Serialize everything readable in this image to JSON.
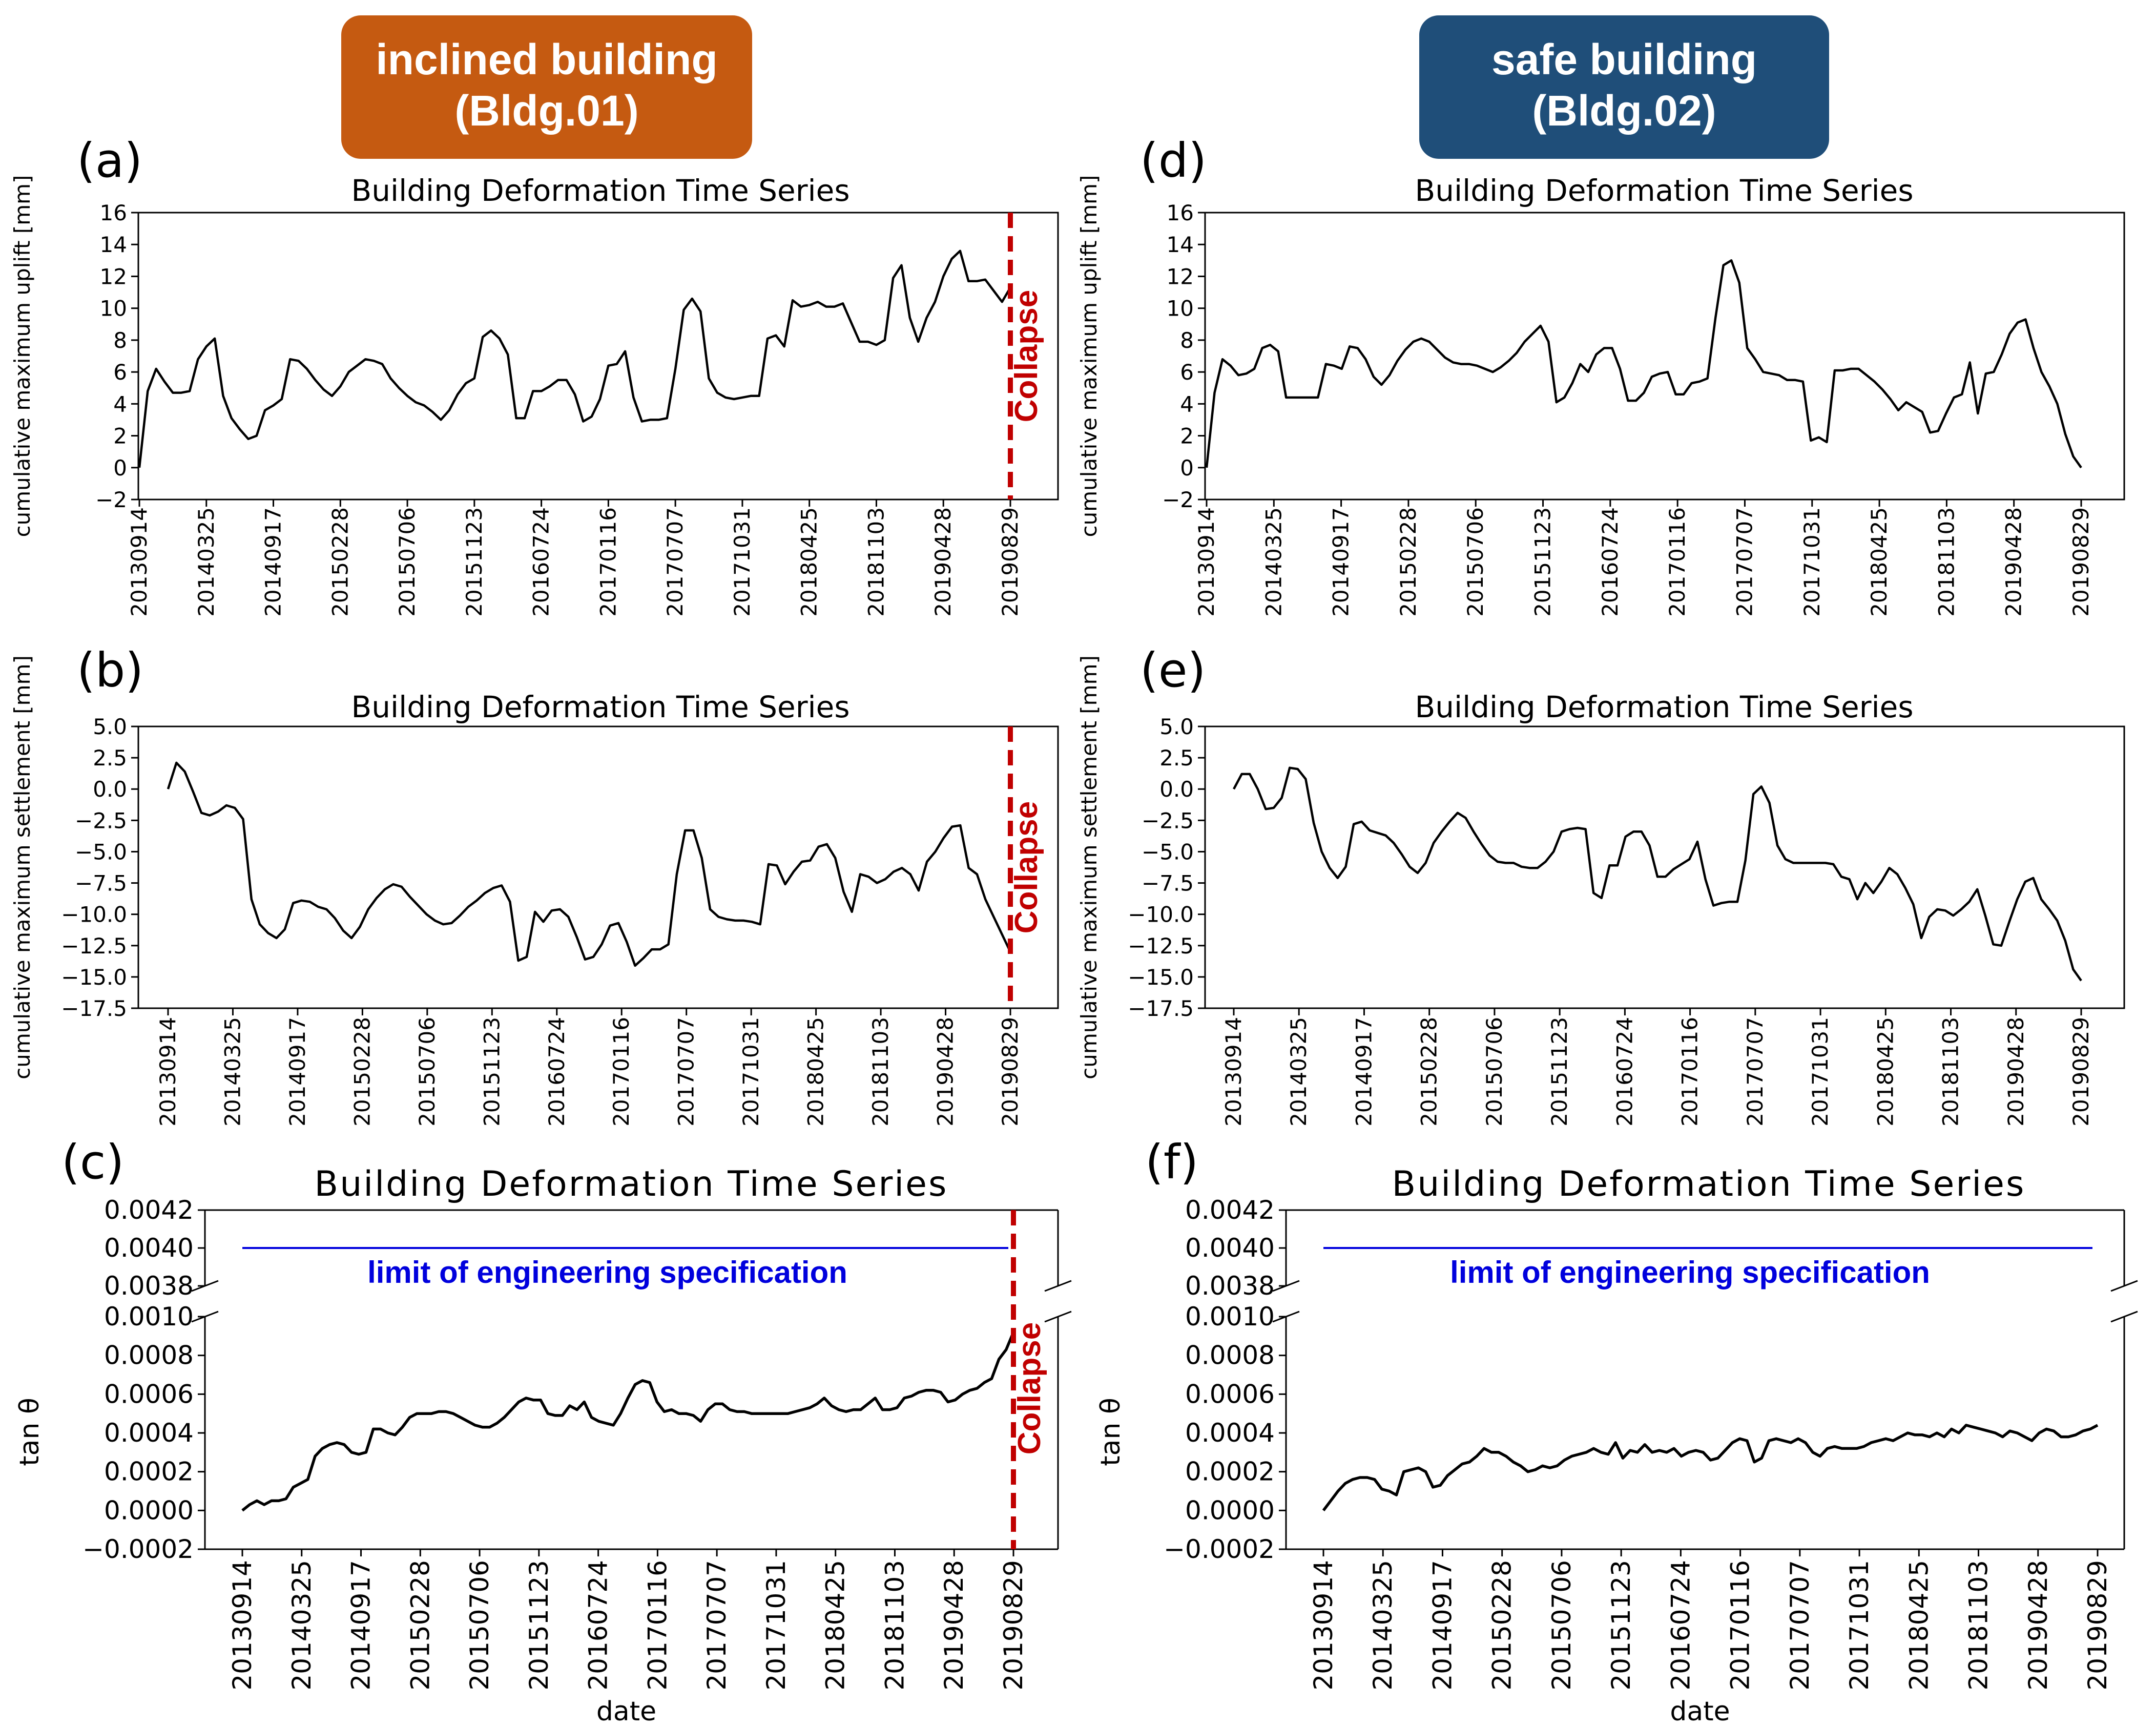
{
  "chart_data": [
    {
      "id": "a",
      "type": "line",
      "panel_label": "(a)",
      "title": "Building Deformation Time Series",
      "xlabel": "",
      "ylabel": "cumulative maximum uplift [mm]",
      "ylim": [
        -2,
        16
      ],
      "yticks": [
        -2,
        0,
        2,
        4,
        6,
        8,
        10,
        12,
        14,
        16
      ],
      "x_tick_labels": [
        "20130914",
        "20140325",
        "20140917",
        "20150228",
        "20150706",
        "20151123",
        "20160724",
        "20170116",
        "20170707",
        "20171031",
        "20180425",
        "20181103",
        "20190428",
        "20190829"
      ],
      "collapse_label": "Collapse",
      "collapse_at_index": 13,
      "series": [
        {
          "name": "Bldg.01",
          "values": [
            0.0,
            4.8,
            6.2,
            5.4,
            4.7,
            4.7,
            4.8,
            6.8,
            7.6,
            8.1,
            4.5,
            3.1,
            2.4,
            1.8,
            2.0,
            3.6,
            3.9,
            4.3,
            6.8,
            6.7,
            6.2,
            5.5,
            4.9,
            4.5,
            5.1,
            6.0,
            6.4,
            6.8,
            6.7,
            6.5,
            5.6,
            5.0,
            4.5,
            4.1,
            3.9,
            3.5,
            3.0,
            3.6,
            4.6,
            5.3,
            5.6,
            8.2,
            8.6,
            8.1,
            7.1,
            3.1,
            3.1,
            4.8,
            4.8,
            5.1,
            5.5,
            5.5,
            4.6,
            2.9,
            3.2,
            4.3,
            6.4,
            6.5,
            7.3,
            4.4,
            2.9,
            3.0,
            3.0,
            3.1,
            6.2,
            9.9,
            10.6,
            9.8,
            5.6,
            4.7,
            4.4,
            4.3,
            4.4,
            4.5,
            4.5,
            8.1,
            8.3,
            7.6,
            10.5,
            10.1,
            10.2,
            10.4,
            10.1,
            10.1,
            10.3,
            9.1,
            7.9,
            7.9,
            7.7,
            8.0,
            11.9,
            12.7,
            9.4,
            7.9,
            9.4,
            10.4,
            12.0,
            13.1,
            13.6,
            11.7,
            11.7,
            11.8,
            11.1,
            10.4,
            11.3
          ]
        }
      ]
    },
    {
      "id": "b",
      "type": "line",
      "panel_label": "(b)",
      "title": "Building Deformation Time Series",
      "xlabel": "",
      "ylabel": "cumulative maximum settlement [mm]",
      "ylim": [
        -17.5,
        5.0
      ],
      "yticks": [
        5.0,
        2.5,
        0.0,
        -2.5,
        -5.0,
        -7.5,
        -10.0,
        -12.5,
        -15.0,
        -17.5
      ],
      "ytick_labels": [
        "5.0",
        "2.5",
        "0.0",
        "−2.5",
        "−5.0",
        "−7.5",
        "−10.0",
        "−12.5",
        "−15.0",
        "−17.5"
      ],
      "x_tick_labels": [
        "20130914",
        "20140325",
        "20140917",
        "20150228",
        "20150706",
        "20151123",
        "20160724",
        "20170116",
        "20170707",
        "20171031",
        "20180425",
        "20181103",
        "20190428",
        "20190829"
      ],
      "collapse_label": "Collapse",
      "collapse_at_index": 13,
      "series": [
        {
          "name": "Bldg.01",
          "values": [
            0.0,
            2.1,
            1.4,
            -0.2,
            -1.9,
            -2.1,
            -1.8,
            -1.3,
            -1.5,
            -2.4,
            -8.8,
            -10.8,
            -11.5,
            -11.9,
            -11.2,
            -9.1,
            -8.9,
            -9.0,
            -9.4,
            -9.6,
            -10.3,
            -11.3,
            -11.9,
            -11.0,
            -9.6,
            -8.7,
            -8.0,
            -7.6,
            -7.8,
            -8.6,
            -9.3,
            -10.0,
            -10.5,
            -10.8,
            -10.7,
            -10.1,
            -9.4,
            -8.9,
            -8.3,
            -7.9,
            -7.7,
            -9.0,
            -13.7,
            -13.4,
            -9.8,
            -10.6,
            -9.7,
            -9.6,
            -10.2,
            -11.8,
            -13.6,
            -13.4,
            -12.4,
            -10.9,
            -10.7,
            -12.2,
            -14.1,
            -13.5,
            -12.8,
            -12.8,
            -12.4,
            -6.8,
            -3.3,
            -3.3,
            -5.5,
            -9.6,
            -10.2,
            -10.4,
            -10.5,
            -10.5,
            -10.6,
            -10.8,
            -6.0,
            -6.1,
            -7.6,
            -6.6,
            -5.8,
            -5.7,
            -4.6,
            -4.4,
            -5.5,
            -8.2,
            -9.8,
            -6.8,
            -7.0,
            -7.5,
            -7.2,
            -6.6,
            -6.3,
            -6.8,
            -8.1,
            -5.8,
            -5.0,
            -3.9,
            -3.0,
            -2.9,
            -6.3,
            -6.8,
            -8.8,
            -10.2,
            -11.6,
            -13.0
          ]
        }
      ]
    },
    {
      "id": "c",
      "type": "line",
      "panel_label": "(c)",
      "title": "Building Deformation Time Series",
      "xlabel": "date",
      "ylabel": "tan θ",
      "broken_axis": true,
      "ylim_upper": [
        0.0038,
        0.0042
      ],
      "yticks_upper": [
        0.0038,
        0.004,
        0.0042
      ],
      "ylim_lower": [
        -0.0002,
        0.001
      ],
      "yticks_lower": [
        -0.0002,
        0.0,
        0.0002,
        0.0004,
        0.0006,
        0.0008,
        0.001
      ],
      "ytick_labels_upper": [
        "0.0038",
        "0.0040",
        "0.0042"
      ],
      "ytick_labels_lower": [
        "−0.0002",
        "0.0000",
        "0.0002",
        "0.0004",
        "0.0006",
        "0.0008",
        "0.0010"
      ],
      "limit_value": 0.004,
      "limit_label": "limit of engineering specification",
      "x_tick_labels": [
        "20130914",
        "20140325",
        "20140917",
        "20150228",
        "20150706",
        "20151123",
        "20160724",
        "20170116",
        "20170707",
        "20171031",
        "20180425",
        "20181103",
        "20190428",
        "20190829"
      ],
      "collapse_label": "Collapse",
      "collapse_at_index": 13,
      "series": [
        {
          "name": "Bldg.01",
          "values": [
            0.0,
            3e-05,
            5e-05,
            3e-05,
            5e-05,
            5e-05,
            6e-05,
            0.00012,
            0.00014,
            0.00016,
            0.00028,
            0.00032,
            0.00034,
            0.00035,
            0.00034,
            0.0003,
            0.00029,
            0.0003,
            0.00042,
            0.00042,
            0.0004,
            0.00039,
            0.00043,
            0.00048,
            0.0005,
            0.0005,
            0.0005,
            0.00051,
            0.00051,
            0.0005,
            0.00048,
            0.00046,
            0.00044,
            0.00043,
            0.00043,
            0.00045,
            0.00048,
            0.00052,
            0.00056,
            0.00058,
            0.00057,
            0.00057,
            0.0005,
            0.00049,
            0.00049,
            0.00054,
            0.00052,
            0.00056,
            0.00048,
            0.00046,
            0.00045,
            0.00044,
            0.0005,
            0.00058,
            0.00065,
            0.00067,
            0.00066,
            0.00056,
            0.00051,
            0.00052,
            0.0005,
            0.0005,
            0.00049,
            0.00046,
            0.00052,
            0.00055,
            0.00055,
            0.00052,
            0.00051,
            0.00051,
            0.0005,
            0.0005,
            0.0005,
            0.0005,
            0.0005,
            0.0005,
            0.00051,
            0.00052,
            0.00053,
            0.00055,
            0.00058,
            0.00054,
            0.00052,
            0.00051,
            0.00052,
            0.00052,
            0.00055,
            0.00058,
            0.00052,
            0.00052,
            0.00053,
            0.00058,
            0.00059,
            0.00061,
            0.00062,
            0.00062,
            0.00061,
            0.00056,
            0.00057,
            0.0006,
            0.00062,
            0.00063,
            0.00066,
            0.00068,
            0.00078,
            0.00083,
            0.00092
          ]
        }
      ]
    },
    {
      "id": "d",
      "type": "line",
      "panel_label": "(d)",
      "title": "Building Deformation Time Series",
      "xlabel": "",
      "ylabel": "cumulative maximum uplift [mm]",
      "ylim": [
        -2,
        16
      ],
      "yticks": [
        -2,
        0,
        2,
        4,
        6,
        8,
        10,
        12,
        14,
        16
      ],
      "x_tick_labels": [
        "20130914",
        "20140325",
        "20140917",
        "20150228",
        "20150706",
        "20151123",
        "20160724",
        "20170116",
        "20170707",
        "20171031",
        "20180425",
        "20181103",
        "20190428",
        "20190829"
      ],
      "series": [
        {
          "name": "Bldg.02",
          "values": [
            0.0,
            4.7,
            6.8,
            6.4,
            5.8,
            5.9,
            6.2,
            7.5,
            7.7,
            7.3,
            4.4,
            4.4,
            4.4,
            4.4,
            4.4,
            6.5,
            6.4,
            6.2,
            7.6,
            7.5,
            6.8,
            5.7,
            5.2,
            5.8,
            6.7,
            7.4,
            7.9,
            8.1,
            7.9,
            7.4,
            6.9,
            6.6,
            6.5,
            6.5,
            6.4,
            6.2,
            6.0,
            6.3,
            6.7,
            7.2,
            7.9,
            8.4,
            8.9,
            7.9,
            4.1,
            4.4,
            5.3,
            6.5,
            6.0,
            7.1,
            7.5,
            7.5,
            6.2,
            4.2,
            4.2,
            4.7,
            5.7,
            5.9,
            6.0,
            4.6,
            4.6,
            5.3,
            5.4,
            5.6,
            9.4,
            12.7,
            13.0,
            11.6,
            7.5,
            6.8,
            6.0,
            5.9,
            5.8,
            5.5,
            5.5,
            5.4,
            1.7,
            1.9,
            1.6,
            6.1,
            6.1,
            6.2,
            6.2,
            5.8,
            5.4,
            4.9,
            4.3,
            3.6,
            4.1,
            3.8,
            3.5,
            2.2,
            2.3,
            3.4,
            4.4,
            4.6,
            6.6,
            3.4,
            5.9,
            6.0,
            7.1,
            8.4,
            9.1,
            9.3,
            7.5,
            6.0,
            5.1,
            4.0,
            2.1,
            0.7,
            0.0
          ]
        }
      ]
    },
    {
      "id": "e",
      "type": "line",
      "panel_label": "(e)",
      "title": "Building Deformation Time Series",
      "xlabel": "",
      "ylabel": "cumulative maximum settlement [mm]",
      "ylim": [
        -17.5,
        5.0
      ],
      "yticks": [
        5.0,
        2.5,
        0.0,
        -2.5,
        -5.0,
        -7.5,
        -10.0,
        -12.5,
        -15.0,
        -17.5
      ],
      "ytick_labels": [
        "5.0",
        "2.5",
        "0.0",
        "−2.5",
        "−5.0",
        "−7.5",
        "−10.0",
        "−12.5",
        "−15.0",
        "−17.5"
      ],
      "x_tick_labels": [
        "20130914",
        "20140325",
        "20140917",
        "20150228",
        "20150706",
        "20151123",
        "20160724",
        "20170116",
        "20170707",
        "20171031",
        "20180425",
        "20181103",
        "20190428",
        "20190829"
      ],
      "series": [
        {
          "name": "Bldg.02",
          "values": [
            0.0,
            1.2,
            1.2,
            0.0,
            -1.6,
            -1.5,
            -0.7,
            1.7,
            1.6,
            0.8,
            -2.7,
            -5.0,
            -6.3,
            -7.1,
            -6.2,
            -2.8,
            -2.6,
            -3.3,
            -3.5,
            -3.7,
            -4.3,
            -5.2,
            -6.2,
            -6.7,
            -5.9,
            -4.3,
            -3.4,
            -2.6,
            -1.9,
            -2.3,
            -3.4,
            -4.4,
            -5.3,
            -5.8,
            -5.9,
            -5.9,
            -6.2,
            -6.3,
            -6.3,
            -5.8,
            -5.0,
            -3.4,
            -3.2,
            -3.1,
            -3.2,
            -8.3,
            -8.7,
            -6.1,
            -6.1,
            -3.8,
            -3.4,
            -3.4,
            -4.5,
            -7.0,
            -7.0,
            -6.4,
            -6.0,
            -5.6,
            -4.2,
            -7.2,
            -9.3,
            -9.1,
            -9.0,
            -9.0,
            -5.7,
            -0.4,
            0.2,
            -1.1,
            -4.5,
            -5.6,
            -5.9,
            -5.9,
            -5.9,
            -5.9,
            -5.9,
            -6.0,
            -7.0,
            -7.2,
            -8.8,
            -7.5,
            -8.3,
            -7.4,
            -6.3,
            -6.8,
            -7.9,
            -9.2,
            -11.9,
            -10.2,
            -9.6,
            -9.7,
            -10.1,
            -9.6,
            -9.0,
            -8.0,
            -10.1,
            -12.4,
            -12.5,
            -10.6,
            -8.8,
            -7.4,
            -7.1,
            -8.8,
            -9.6,
            -10.5,
            -12.1,
            -14.4,
            -15.3
          ]
        }
      ]
    },
    {
      "id": "f",
      "type": "line",
      "panel_label": "(f)",
      "title": "Building Deformation Time Series",
      "xlabel": "date",
      "ylabel": "tan θ",
      "broken_axis": true,
      "ylim_upper": [
        0.0038,
        0.0042
      ],
      "yticks_upper": [
        0.0038,
        0.004,
        0.0042
      ],
      "ylim_lower": [
        -0.0002,
        0.001
      ],
      "yticks_lower": [
        -0.0002,
        0.0,
        0.0002,
        0.0004,
        0.0006,
        0.0008,
        0.001
      ],
      "ytick_labels_upper": [
        "0.0038",
        "0.0040",
        "0.0042"
      ],
      "ytick_labels_lower": [
        "−0.0002",
        "0.0000",
        "0.0002",
        "0.0004",
        "0.0006",
        "0.0008",
        "0.0010"
      ],
      "limit_value": 0.004,
      "limit_label": "limit of engineering specification",
      "x_tick_labels": [
        "20130914",
        "20140325",
        "20140917",
        "20150228",
        "20150706",
        "20151123",
        "20160724",
        "20170116",
        "20170707",
        "20171031",
        "20180425",
        "20181103",
        "20190428",
        "20190829"
      ],
      "series": [
        {
          "name": "Bldg.02",
          "values": [
            0.0,
            5e-05,
            0.0001,
            0.00014,
            0.00016,
            0.00017,
            0.00017,
            0.00016,
            0.00011,
            0.0001,
            8e-05,
            0.0002,
            0.00021,
            0.00022,
            0.0002,
            0.00012,
            0.00013,
            0.00018,
            0.00021,
            0.00024,
            0.00025,
            0.00028,
            0.00032,
            0.0003,
            0.0003,
            0.00028,
            0.00025,
            0.00023,
            0.0002,
            0.00021,
            0.00023,
            0.00022,
            0.00023,
            0.00026,
            0.00028,
            0.00029,
            0.0003,
            0.00032,
            0.0003,
            0.00029,
            0.00035,
            0.00027,
            0.00031,
            0.0003,
            0.00034,
            0.0003,
            0.00031,
            0.0003,
            0.00032,
            0.00028,
            0.0003,
            0.00031,
            0.0003,
            0.00026,
            0.00027,
            0.00031,
            0.00035,
            0.00037,
            0.00036,
            0.00025,
            0.00027,
            0.00036,
            0.00037,
            0.00036,
            0.00035,
            0.00037,
            0.00035,
            0.0003,
            0.00028,
            0.00032,
            0.00033,
            0.00032,
            0.00032,
            0.00032,
            0.00033,
            0.00035,
            0.00036,
            0.00037,
            0.00036,
            0.00038,
            0.0004,
            0.00039,
            0.00039,
            0.00038,
            0.0004,
            0.00038,
            0.00042,
            0.0004,
            0.00044,
            0.00043,
            0.00042,
            0.00041,
            0.0004,
            0.00038,
            0.00041,
            0.0004,
            0.00038,
            0.00036,
            0.0004,
            0.00042,
            0.00041,
            0.00038,
            0.00038,
            0.00039,
            0.00041,
            0.00042,
            0.00044
          ]
        }
      ]
    }
  ],
  "headers": {
    "left": {
      "line1": "inclined building",
      "line2": "(Bldg.01)",
      "color": "#c55a11"
    },
    "right": {
      "line1": "safe building",
      "line2": "(Bldg.02)",
      "color": "#1f4e79"
    }
  },
  "colors": {
    "line": "#000000",
    "collapse": "#c00000",
    "limit": "#0000dd",
    "text": "#000000"
  }
}
